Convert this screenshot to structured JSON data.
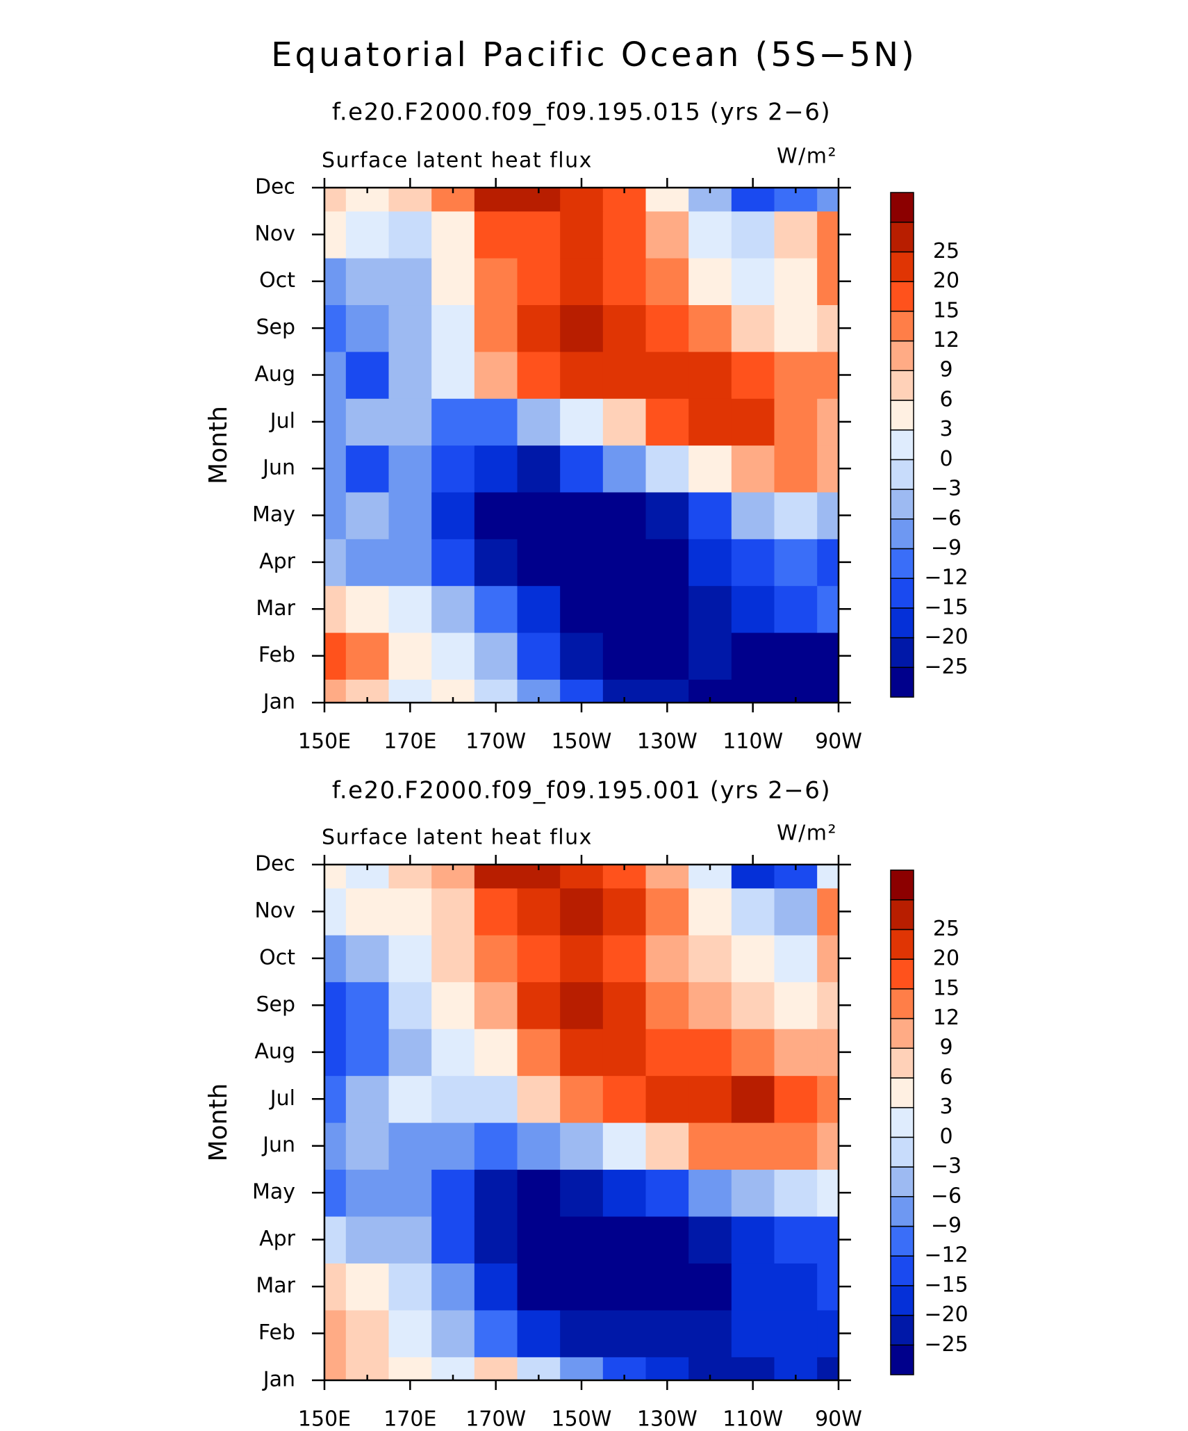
{
  "title": "Equatorial Pacific Ocean (5S−5N)",
  "chart_data": [
    {
      "type": "contour",
      "subtitle": "f.e20.F2000.f09_f09.195.015 (yrs 2−6)",
      "left_label": "Surface latent heat flux",
      "units_label": "W/m²",
      "ylabel": "Month",
      "categories": [
        "Jan",
        "Feb",
        "Mar",
        "Apr",
        "May",
        "Jun",
        "Jul",
        "Aug",
        "Sep",
        "Oct",
        "Nov",
        "Dec"
      ],
      "x": [
        150,
        160,
        170,
        180,
        190,
        200,
        210,
        220,
        230,
        240,
        250,
        260,
        270
      ],
      "xlim": [
        150,
        270
      ],
      "xticks": [
        {
          "value": 150,
          "label": "150E"
        },
        {
          "value": 170,
          "label": "170E"
        },
        {
          "value": 190,
          "label": "170W"
        },
        {
          "value": 210,
          "label": "150W"
        },
        {
          "value": 230,
          "label": "130W"
        },
        {
          "value": 250,
          "label": "110W"
        },
        {
          "value": 270,
          "label": "90W"
        }
      ],
      "xminorticks": [
        160,
        180,
        200,
        220,
        240,
        260
      ],
      "levels": [
        {
          "value": -25,
          "label": "−25"
        },
        {
          "value": -20,
          "label": "−20"
        },
        {
          "value": -15,
          "label": "−15"
        },
        {
          "value": -12,
          "label": "−12"
        },
        {
          "value": -9,
          "label": "−9"
        },
        {
          "value": -6,
          "label": "−6"
        },
        {
          "value": -3,
          "label": "−3"
        },
        0,
        3,
        6,
        9,
        12,
        15,
        20,
        25
      ],
      "colors": [
        "#00008c",
        "#0018a8",
        "#0530d8",
        "#1a4af0",
        "#3a6ef8",
        "#6e98f2",
        "#9dbaf2",
        "#c8dcfb",
        "#dfecfd",
        "#fff0e2",
        "#ffd1b8",
        "#ffab85",
        "#ff7e48",
        "#ff521c",
        "#e03504",
        "#b81e00",
        "#8c0000"
      ],
      "z": [
        [
          12,
          9,
          3,
          6,
          0,
          -6,
          -12,
          -20,
          -20,
          -25,
          -25,
          -25,
          -28
        ],
        [
          20,
          15,
          6,
          3,
          -3,
          -12,
          -20,
          -25,
          -25,
          -20,
          -25,
          -25,
          -25
        ],
        [
          9,
          6,
          3,
          -3,
          -9,
          -15,
          -25,
          -28,
          -28,
          -20,
          -15,
          -12,
          -9
        ],
        [
          -3,
          -6,
          -6,
          -12,
          -20,
          -28,
          -28,
          -28,
          -28,
          -15,
          -12,
          -9,
          -12
        ],
        [
          -6,
          -3,
          -6,
          -15,
          -25,
          -28,
          -28,
          -25,
          -20,
          -12,
          -3,
          0,
          -3
        ],
        [
          -6,
          -12,
          -6,
          -12,
          -15,
          -20,
          -12,
          -6,
          0,
          6,
          12,
          15,
          12
        ],
        [
          -6,
          -3,
          -3,
          -9,
          -9,
          -3,
          3,
          9,
          20,
          25,
          25,
          15,
          12
        ],
        [
          -6,
          -12,
          -3,
          3,
          12,
          20,
          25,
          25,
          25,
          25,
          20,
          15,
          15
        ],
        [
          -9,
          -6,
          -3,
          3,
          15,
          25,
          28,
          25,
          20,
          15,
          9,
          6,
          9
        ],
        [
          -6,
          -3,
          -3,
          6,
          15,
          20,
          25,
          20,
          15,
          6,
          3,
          6,
          15
        ],
        [
          6,
          3,
          0,
          6,
          20,
          20,
          25,
          20,
          12,
          3,
          0,
          9,
          15
        ],
        [
          9,
          6,
          9,
          15,
          28,
          28,
          25,
          20,
          6,
          -3,
          -12,
          -9,
          -6
        ]
      ]
    },
    {
      "type": "contour",
      "subtitle": "f.e20.F2000.f09_f09.195.001 (yrs 2−6)",
      "left_label": "Surface latent heat flux",
      "units_label": "W/m²",
      "ylabel": "Month",
      "categories": [
        "Jan",
        "Feb",
        "Mar",
        "Apr",
        "May",
        "Jun",
        "Jul",
        "Aug",
        "Sep",
        "Oct",
        "Nov",
        "Dec"
      ],
      "x": [
        150,
        160,
        170,
        180,
        190,
        200,
        210,
        220,
        230,
        240,
        250,
        260,
        270
      ],
      "xlim": [
        150,
        270
      ],
      "xticks": [
        {
          "value": 150,
          "label": "150E"
        },
        {
          "value": 170,
          "label": "170E"
        },
        {
          "value": 190,
          "label": "170W"
        },
        {
          "value": 210,
          "label": "150W"
        },
        {
          "value": 230,
          "label": "130W"
        },
        {
          "value": 250,
          "label": "110W"
        },
        {
          "value": 270,
          "label": "90W"
        }
      ],
      "xminorticks": [
        160,
        180,
        200,
        220,
        240,
        260
      ],
      "levels": [
        {
          "value": -25,
          "label": "−25"
        },
        {
          "value": -20,
          "label": "−20"
        },
        {
          "value": -15,
          "label": "−15"
        },
        {
          "value": -12,
          "label": "−12"
        },
        {
          "value": -9,
          "label": "−9"
        },
        {
          "value": -6,
          "label": "−6"
        },
        {
          "value": -3,
          "label": "−3"
        },
        0,
        3,
        6,
        9,
        12,
        15,
        20,
        25
      ],
      "colors": [
        "#00008c",
        "#0018a8",
        "#0530d8",
        "#1a4af0",
        "#3a6ef8",
        "#6e98f2",
        "#9dbaf2",
        "#c8dcfb",
        "#dfecfd",
        "#fff0e2",
        "#ffd1b8",
        "#ffab85",
        "#ff7e48",
        "#ff521c",
        "#e03504",
        "#b81e00",
        "#8c0000"
      ],
      "z": [
        [
          12,
          9,
          6,
          3,
          9,
          0,
          -6,
          -12,
          -15,
          -20,
          -20,
          -15,
          -20
        ],
        [
          12,
          9,
          3,
          -3,
          -9,
          -15,
          -20,
          -20,
          -20,
          -20,
          -15,
          -15,
          -15
        ],
        [
          9,
          6,
          0,
          -6,
          -15,
          -25,
          -28,
          -28,
          -28,
          -25,
          -15,
          -15,
          -12
        ],
        [
          0,
          -3,
          -3,
          -12,
          -20,
          -28,
          -28,
          -28,
          -25,
          -20,
          -15,
          -12,
          -12
        ],
        [
          -9,
          -6,
          -6,
          -12,
          -20,
          -25,
          -20,
          -15,
          -12,
          -6,
          -3,
          0,
          3
        ],
        [
          -6,
          -3,
          -6,
          -6,
          -9,
          -6,
          -3,
          3,
          9,
          15,
          15,
          15,
          12
        ],
        [
          -9,
          -3,
          3,
          0,
          0,
          9,
          15,
          20,
          25,
          25,
          28,
          20,
          15
        ],
        [
          -12,
          -9,
          -3,
          3,
          6,
          15,
          25,
          25,
          20,
          20,
          15,
          12,
          12
        ],
        [
          -12,
          -9,
          0,
          6,
          12,
          25,
          28,
          25,
          15,
          12,
          9,
          6,
          9
        ],
        [
          -6,
          -3,
          3,
          9,
          15,
          20,
          25,
          20,
          12,
          9,
          6,
          3,
          12
        ],
        [
          3,
          6,
          6,
          9,
          20,
          25,
          28,
          25,
          15,
          6,
          0,
          -3,
          15
        ],
        [
          6,
          3,
          9,
          12,
          28,
          28,
          25,
          20,
          12,
          3,
          -15,
          -12,
          3
        ]
      ]
    }
  ]
}
